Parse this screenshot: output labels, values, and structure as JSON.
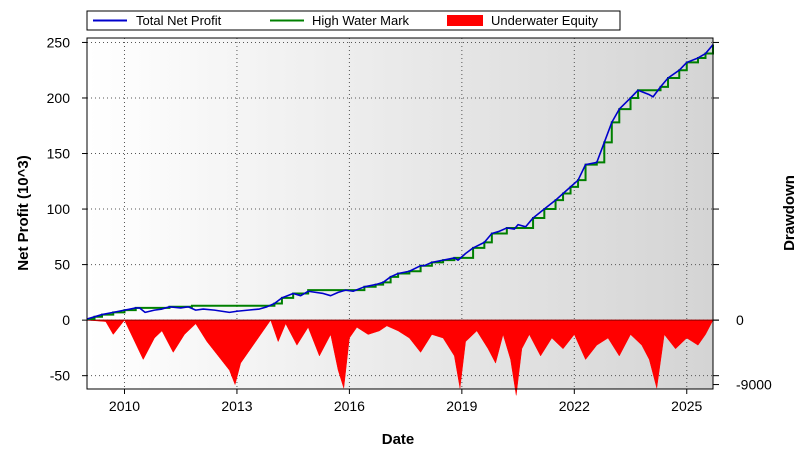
{
  "chart_data": {
    "type": "line",
    "xlabel": "Date",
    "ylabel": "Net Profit (10^3)",
    "y2label": "Drawdown",
    "xlim": [
      2009.0,
      2025.7
    ],
    "ylim": [
      -62,
      254
    ],
    "x_ticks": [
      2010,
      2013,
      2016,
      2019,
      2022,
      2025
    ],
    "y_ticks": [
      250,
      200,
      150,
      100,
      50,
      0,
      -50
    ],
    "y2_ticks": [
      {
        "value": 0,
        "label": "0"
      },
      {
        "value": -9000,
        "label": "-9000"
      }
    ],
    "y2_reference": {
      "drawdown_zero_at_net_profit": 0,
      "drawdown_minus_9000_at_net_profit": -58
    },
    "grid": true,
    "legend_position": "top",
    "colors": {
      "total_net_profit": "#0000cc",
      "high_water_mark": "#008000",
      "underwater_equity": "#ff0000",
      "background_start": "#ffffff",
      "background_end": "#d4d4d4"
    },
    "series": [
      {
        "name": "Total Net Profit",
        "x": [
          2009.0,
          2009.2,
          2009.4,
          2009.7,
          2010.0,
          2010.3,
          2010.4,
          2010.55,
          2010.8,
          2011.0,
          2011.2,
          2011.5,
          2011.7,
          2011.9,
          2012.1,
          2012.4,
          2012.6,
          2012.8,
          2013.0,
          2013.3,
          2013.6,
          2013.8,
          2014.0,
          2014.2,
          2014.5,
          2014.7,
          2014.9,
          2015.1,
          2015.3,
          2015.5,
          2015.7,
          2015.9,
          2016.1,
          2016.4,
          2016.7,
          2016.9,
          2017.1,
          2017.3,
          2017.6,
          2017.9,
          2018.0,
          2018.2,
          2018.5,
          2018.8,
          2018.9,
          2019.1,
          2019.3,
          2019.6,
          2019.8,
          2020.0,
          2020.2,
          2020.4,
          2020.5,
          2020.7,
          2020.9,
          2021.2,
          2021.5,
          2021.7,
          2021.9,
          2022.1,
          2022.3,
          2022.6,
          2022.8,
          2023.0,
          2023.2,
          2023.5,
          2023.7,
          2024.0,
          2024.1,
          2024.3,
          2024.5,
          2024.8,
          2025.0,
          2025.3,
          2025.5,
          2025.7
        ],
        "values": [
          1,
          3,
          5,
          7,
          9,
          11,
          11,
          7,
          9,
          10,
          12,
          11,
          12,
          9,
          10,
          9,
          8,
          7,
          8,
          9,
          10,
          12,
          15,
          20,
          24,
          22,
          26,
          25,
          24,
          22,
          25,
          27,
          26,
          30,
          32,
          34,
          39,
          42,
          44,
          49,
          49,
          52,
          54,
          56,
          54,
          60,
          65,
          70,
          78,
          80,
          83,
          82,
          86,
          84,
          92,
          100,
          108,
          114,
          120,
          126,
          140,
          142,
          160,
          178,
          190,
          200,
          207,
          203,
          201,
          210,
          218,
          225,
          232,
          236,
          240,
          248
        ]
      },
      {
        "name": "High Water Mark",
        "x": [
          2009.0,
          2009.2,
          2009.4,
          2009.7,
          2010.0,
          2010.3,
          2011.2,
          2011.8,
          2013.8,
          2014.0,
          2014.2,
          2014.5,
          2014.9,
          2016.4,
          2016.7,
          2016.9,
          2017.1,
          2017.3,
          2017.6,
          2017.9,
          2018.2,
          2018.5,
          2018.8,
          2019.3,
          2019.6,
          2019.8,
          2020.2,
          2020.9,
          2021.2,
          2021.5,
          2021.7,
          2021.9,
          2022.1,
          2022.3,
          2022.6,
          2022.8,
          2023.0,
          2023.2,
          2023.5,
          2023.7,
          2024.3,
          2024.5,
          2024.8,
          2025.0,
          2025.3,
          2025.5,
          2025.7
        ],
        "values": [
          1,
          3,
          5,
          7,
          9,
          11,
          12,
          13,
          13,
          15,
          20,
          24,
          27,
          30,
          32,
          34,
          39,
          42,
          44,
          49,
          52,
          54,
          56,
          65,
          70,
          78,
          83,
          92,
          100,
          108,
          114,
          120,
          126,
          140,
          142,
          160,
          178,
          190,
          200,
          207,
          210,
          218,
          225,
          232,
          236,
          240,
          248
        ]
      },
      {
        "name": "Underwater Equity",
        "type": "area",
        "x": [
          2009.0,
          2009.5,
          2009.7,
          2010.0,
          2010.5,
          2010.8,
          2011.0,
          2011.3,
          2011.6,
          2011.9,
          2012.2,
          2012.5,
          2012.8,
          2012.95,
          2013.1,
          2013.3,
          2013.5,
          2013.7,
          2013.9,
          2014.1,
          2014.3,
          2014.6,
          2014.9,
          2015.2,
          2015.5,
          2015.7,
          2015.85,
          2016.0,
          2016.2,
          2016.5,
          2016.8,
          2017.0,
          2017.3,
          2017.6,
          2017.9,
          2018.2,
          2018.5,
          2018.8,
          2018.95,
          2019.1,
          2019.4,
          2019.7,
          2019.9,
          2020.1,
          2020.3,
          2020.45,
          2020.6,
          2020.8,
          2021.1,
          2021.4,
          2021.7,
          2022.0,
          2022.3,
          2022.6,
          2022.9,
          2023.2,
          2023.5,
          2023.8,
          2024.0,
          2024.2,
          2024.4,
          2024.7,
          2025.0,
          2025.3,
          2025.5,
          2025.7
        ],
        "values": [
          0,
          -200,
          -2000,
          0,
          -5500,
          -2500,
          -1500,
          -4500,
          -2000,
          -500,
          -3000,
          -5000,
          -7000,
          -9000,
          -6000,
          -4500,
          -3000,
          -1500,
          0,
          -3000,
          -500,
          -3500,
          -1000,
          -5000,
          -2000,
          -7000,
          -9500,
          -2500,
          -1000,
          -2000,
          -1500,
          -800,
          -1500,
          -2500,
          -4500,
          -2000,
          -2500,
          -5000,
          -9500,
          -3000,
          -1500,
          -4000,
          -6000,
          -2000,
          -5500,
          -10500,
          -4000,
          -2000,
          -5000,
          -2500,
          -4000,
          -2000,
          -5500,
          -3500,
          -2500,
          -5000,
          -2000,
          -3500,
          -5500,
          -9500,
          -2000,
          -4000,
          -2500,
          -3500,
          -2000,
          0
        ]
      }
    ]
  }
}
